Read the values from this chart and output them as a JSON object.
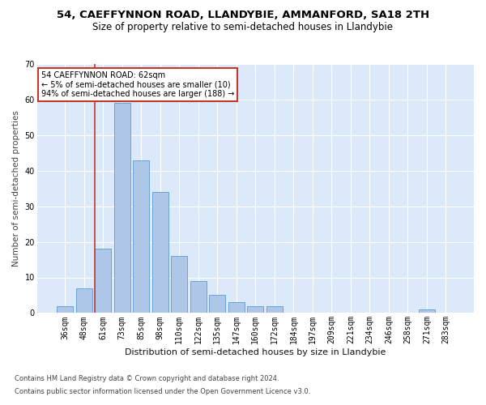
{
  "title1": "54, CAEFFYNNON ROAD, LLANDYBIE, AMMANFORD, SA18 2TH",
  "title2": "Size of property relative to semi-detached houses in Llandybie",
  "xlabel": "Distribution of semi-detached houses by size in Llandybie",
  "ylabel": "Number of semi-detached properties",
  "footer1": "Contains HM Land Registry data © Crown copyright and database right 2024.",
  "footer2": "Contains public sector information licensed under the Open Government Licence v3.0.",
  "annotation_title": "54 CAEFFYNNON ROAD: 62sqm",
  "annotation_line2": "← 5% of semi-detached houses are smaller (10)",
  "annotation_line3": "94% of semi-detached houses are larger (188) →",
  "bar_categories": [
    "36sqm",
    "48sqm",
    "61sqm",
    "73sqm",
    "85sqm",
    "98sqm",
    "110sqm",
    "122sqm",
    "135sqm",
    "147sqm",
    "160sqm",
    "172sqm",
    "184sqm",
    "197sqm",
    "209sqm",
    "221sqm",
    "234sqm",
    "246sqm",
    "258sqm",
    "271sqm",
    "283sqm"
  ],
  "bar_heights": [
    2,
    7,
    18,
    59,
    43,
    34,
    16,
    9,
    5,
    3,
    2,
    2,
    0,
    0,
    0,
    0,
    0,
    0,
    0,
    1,
    0
  ],
  "bar_color": "#aec6e8",
  "bar_edge_color": "#5b9bd5",
  "vline_index": 2,
  "ylim": [
    0,
    70
  ],
  "yticks": [
    0,
    10,
    20,
    30,
    40,
    50,
    60,
    70
  ],
  "bg_color": "#dce9f8",
  "grid_color": "#ffffff",
  "vline_color": "#c0392b",
  "annotation_box_color": "#c0392b",
  "title1_fontsize": 9.5,
  "title2_fontsize": 8.5,
  "xlabel_fontsize": 8,
  "ylabel_fontsize": 7.5,
  "tick_fontsize": 7,
  "footer_fontsize": 6
}
